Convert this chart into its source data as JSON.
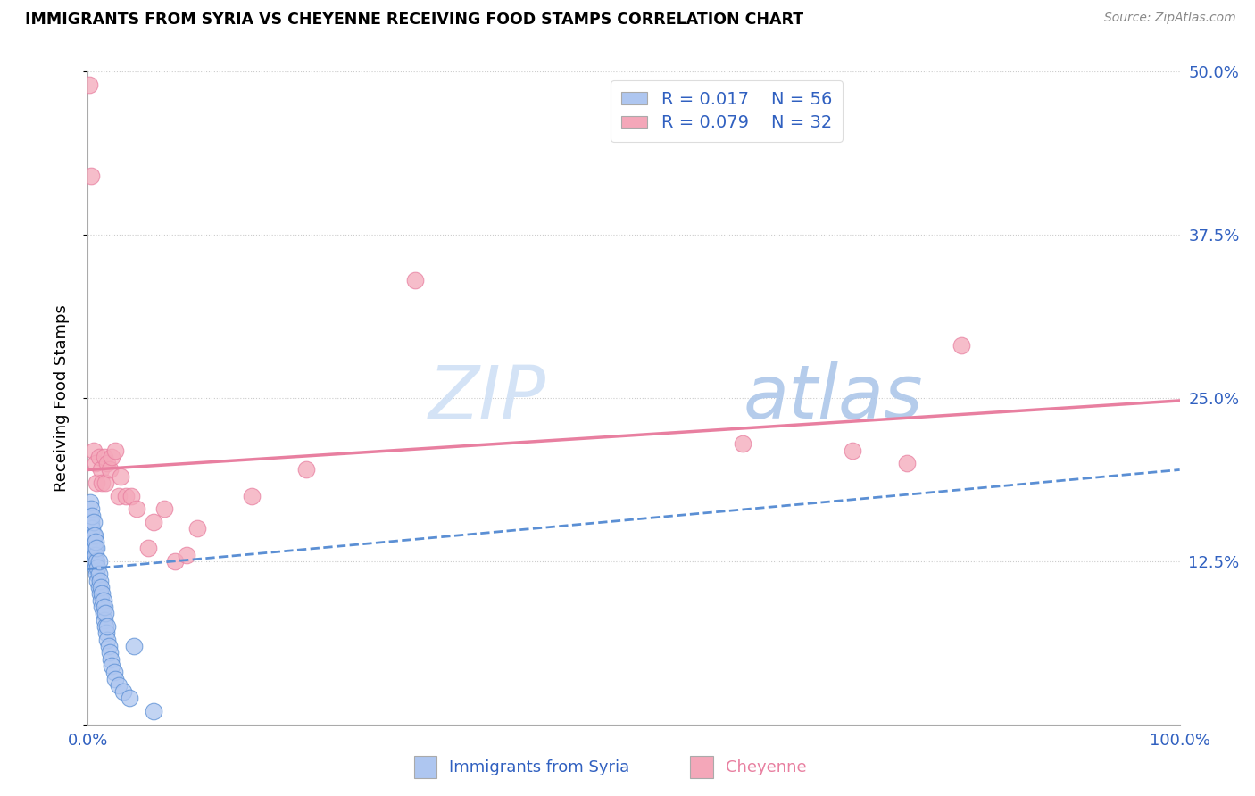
{
  "title": "IMMIGRANTS FROM SYRIA VS CHEYENNE RECEIVING FOOD STAMPS CORRELATION CHART",
  "source": "Source: ZipAtlas.com",
  "xlabel_blue": "Immigrants from Syria",
  "xlabel_pink": "Cheyenne",
  "ylabel": "Receiving Food Stamps",
  "xlim": [
    0.0,
    1.0
  ],
  "ylim": [
    0.0,
    0.5
  ],
  "xtick_labels": [
    "0.0%",
    "",
    "",
    "",
    "100.0%"
  ],
  "ytick_labels": [
    "",
    "12.5%",
    "25.0%",
    "37.5%",
    "50.0%"
  ],
  "blue_R": "R = 0.017",
  "blue_N": "N = 56",
  "pink_R": "R = 0.079",
  "pink_N": "N = 32",
  "blue_color": "#aec6f0",
  "pink_color": "#f4a7b9",
  "blue_line_color": "#5b8fd4",
  "pink_line_color": "#e87fa0",
  "legend_text_color": "#3060c0",
  "blue_scatter_x": [
    0.001,
    0.001,
    0.002,
    0.002,
    0.002,
    0.003,
    0.003,
    0.003,
    0.003,
    0.004,
    0.004,
    0.004,
    0.005,
    0.005,
    0.005,
    0.005,
    0.006,
    0.006,
    0.006,
    0.007,
    0.007,
    0.007,
    0.008,
    0.008,
    0.008,
    0.009,
    0.009,
    0.01,
    0.01,
    0.01,
    0.011,
    0.011,
    0.012,
    0.012,
    0.013,
    0.013,
    0.014,
    0.014,
    0.015,
    0.015,
    0.016,
    0.016,
    0.017,
    0.018,
    0.018,
    0.019,
    0.02,
    0.021,
    0.022,
    0.024,
    0.025,
    0.028,
    0.032,
    0.038,
    0.042,
    0.06
  ],
  "blue_scatter_y": [
    0.135,
    0.145,
    0.155,
    0.16,
    0.17,
    0.145,
    0.15,
    0.155,
    0.165,
    0.14,
    0.15,
    0.16,
    0.13,
    0.138,
    0.145,
    0.155,
    0.125,
    0.135,
    0.145,
    0.12,
    0.13,
    0.14,
    0.115,
    0.125,
    0.135,
    0.11,
    0.12,
    0.105,
    0.115,
    0.125,
    0.1,
    0.11,
    0.095,
    0.105,
    0.09,
    0.1,
    0.085,
    0.095,
    0.08,
    0.09,
    0.075,
    0.085,
    0.07,
    0.065,
    0.075,
    0.06,
    0.055,
    0.05,
    0.045,
    0.04,
    0.035,
    0.03,
    0.025,
    0.02,
    0.06,
    0.01
  ],
  "pink_scatter_x": [
    0.001,
    0.003,
    0.005,
    0.007,
    0.008,
    0.01,
    0.012,
    0.013,
    0.015,
    0.016,
    0.018,
    0.02,
    0.022,
    0.025,
    0.028,
    0.03,
    0.035,
    0.04,
    0.045,
    0.055,
    0.06,
    0.07,
    0.08,
    0.09,
    0.1,
    0.15,
    0.2,
    0.3,
    0.6,
    0.7,
    0.75,
    0.8
  ],
  "pink_scatter_y": [
    0.49,
    0.42,
    0.21,
    0.2,
    0.185,
    0.205,
    0.195,
    0.185,
    0.205,
    0.185,
    0.2,
    0.195,
    0.205,
    0.21,
    0.175,
    0.19,
    0.175,
    0.175,
    0.165,
    0.135,
    0.155,
    0.165,
    0.125,
    0.13,
    0.15,
    0.175,
    0.195,
    0.34,
    0.215,
    0.21,
    0.2,
    0.29
  ],
  "blue_line_x": [
    0.0,
    1.0
  ],
  "blue_line_y": [
    0.119,
    0.195
  ],
  "pink_line_x": [
    0.0,
    1.0
  ],
  "pink_line_y": [
    0.195,
    0.248
  ]
}
